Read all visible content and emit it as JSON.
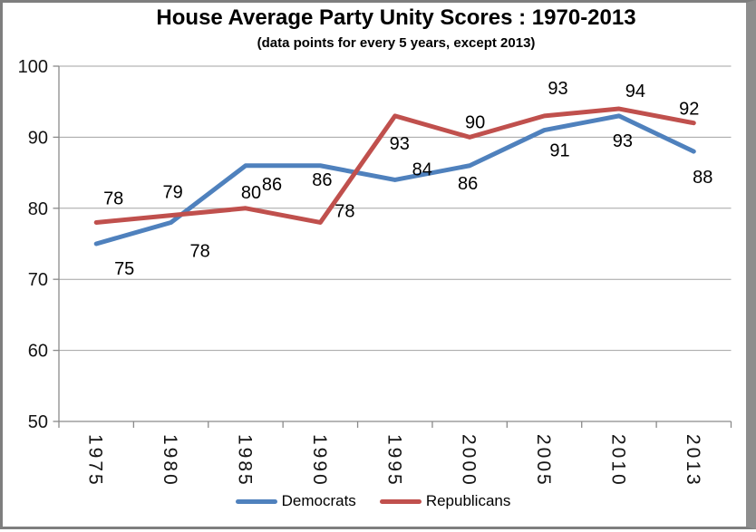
{
  "chart_data": {
    "type": "line",
    "title": "House Average Party Unity Scores : 1970-2013",
    "subtitle": "(data points for every 5 years, except 2013)",
    "categories": [
      "1975",
      "1980",
      "1985",
      "1990",
      "1995",
      "2000",
      "2005",
      "2010",
      "2013"
    ],
    "series": [
      {
        "name": "Democrats",
        "color": "#4F81BD",
        "values": [
          75,
          78,
          86,
          86,
          84,
          86,
          91,
          93,
          88
        ]
      },
      {
        "name": "Republicans",
        "color": "#C0504D",
        "values": [
          78,
          79,
          80,
          78,
          93,
          90,
          93,
          94,
          92
        ]
      }
    ],
    "ylim": [
      50,
      100
    ],
    "yticks": [
      50,
      60,
      70,
      80,
      90,
      100
    ],
    "grid": true,
    "data_labels": true,
    "legend_position": "bottom"
  }
}
